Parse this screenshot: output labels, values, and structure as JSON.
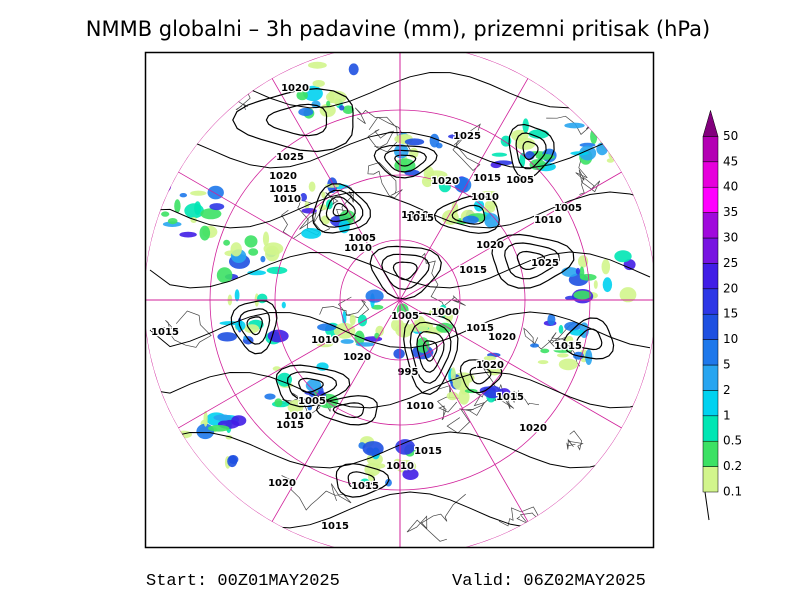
{
  "title": "NMMB globalni – 3h padavine (mm), prizemni pritisak (hPa)",
  "colorbar": {
    "levels": [
      0.1,
      0.2,
      0.5,
      1,
      2,
      5,
      10,
      15,
      20,
      25,
      30,
      35,
      40,
      45,
      50
    ],
    "colors": [
      "#d2f58c",
      "#3ce164",
      "#00e6b4",
      "#00d2f0",
      "#28a5f0",
      "#1e78eb",
      "#1e50e1",
      "#2d37e6",
      "#411ee6",
      "#7814e1",
      "#a00adc",
      "#ff00ff",
      "#e600dc",
      "#b400b4",
      "#82007d"
    ]
  },
  "isobar_labels": [
    "1020",
    "1025",
    "1020",
    "1015",
    "1010",
    "1025",
    "1020",
    "1015",
    "1010",
    "1005",
    "1005",
    "1010",
    "1010",
    "1015",
    "1005",
    "1010",
    "1020",
    "1015",
    "1025",
    "1015",
    "1005",
    "1000",
    "1015",
    "1020",
    "1015",
    "1010",
    "1020",
    "995",
    "1020",
    "1005",
    "1010",
    "1015",
    "1015",
    "1010",
    "1020",
    "1015",
    "1010",
    "1020",
    "1015",
    "1015"
  ],
  "start": "Start: 00Z01MAY2025",
  "valid": "Valid: 06Z02MAY2025"
}
